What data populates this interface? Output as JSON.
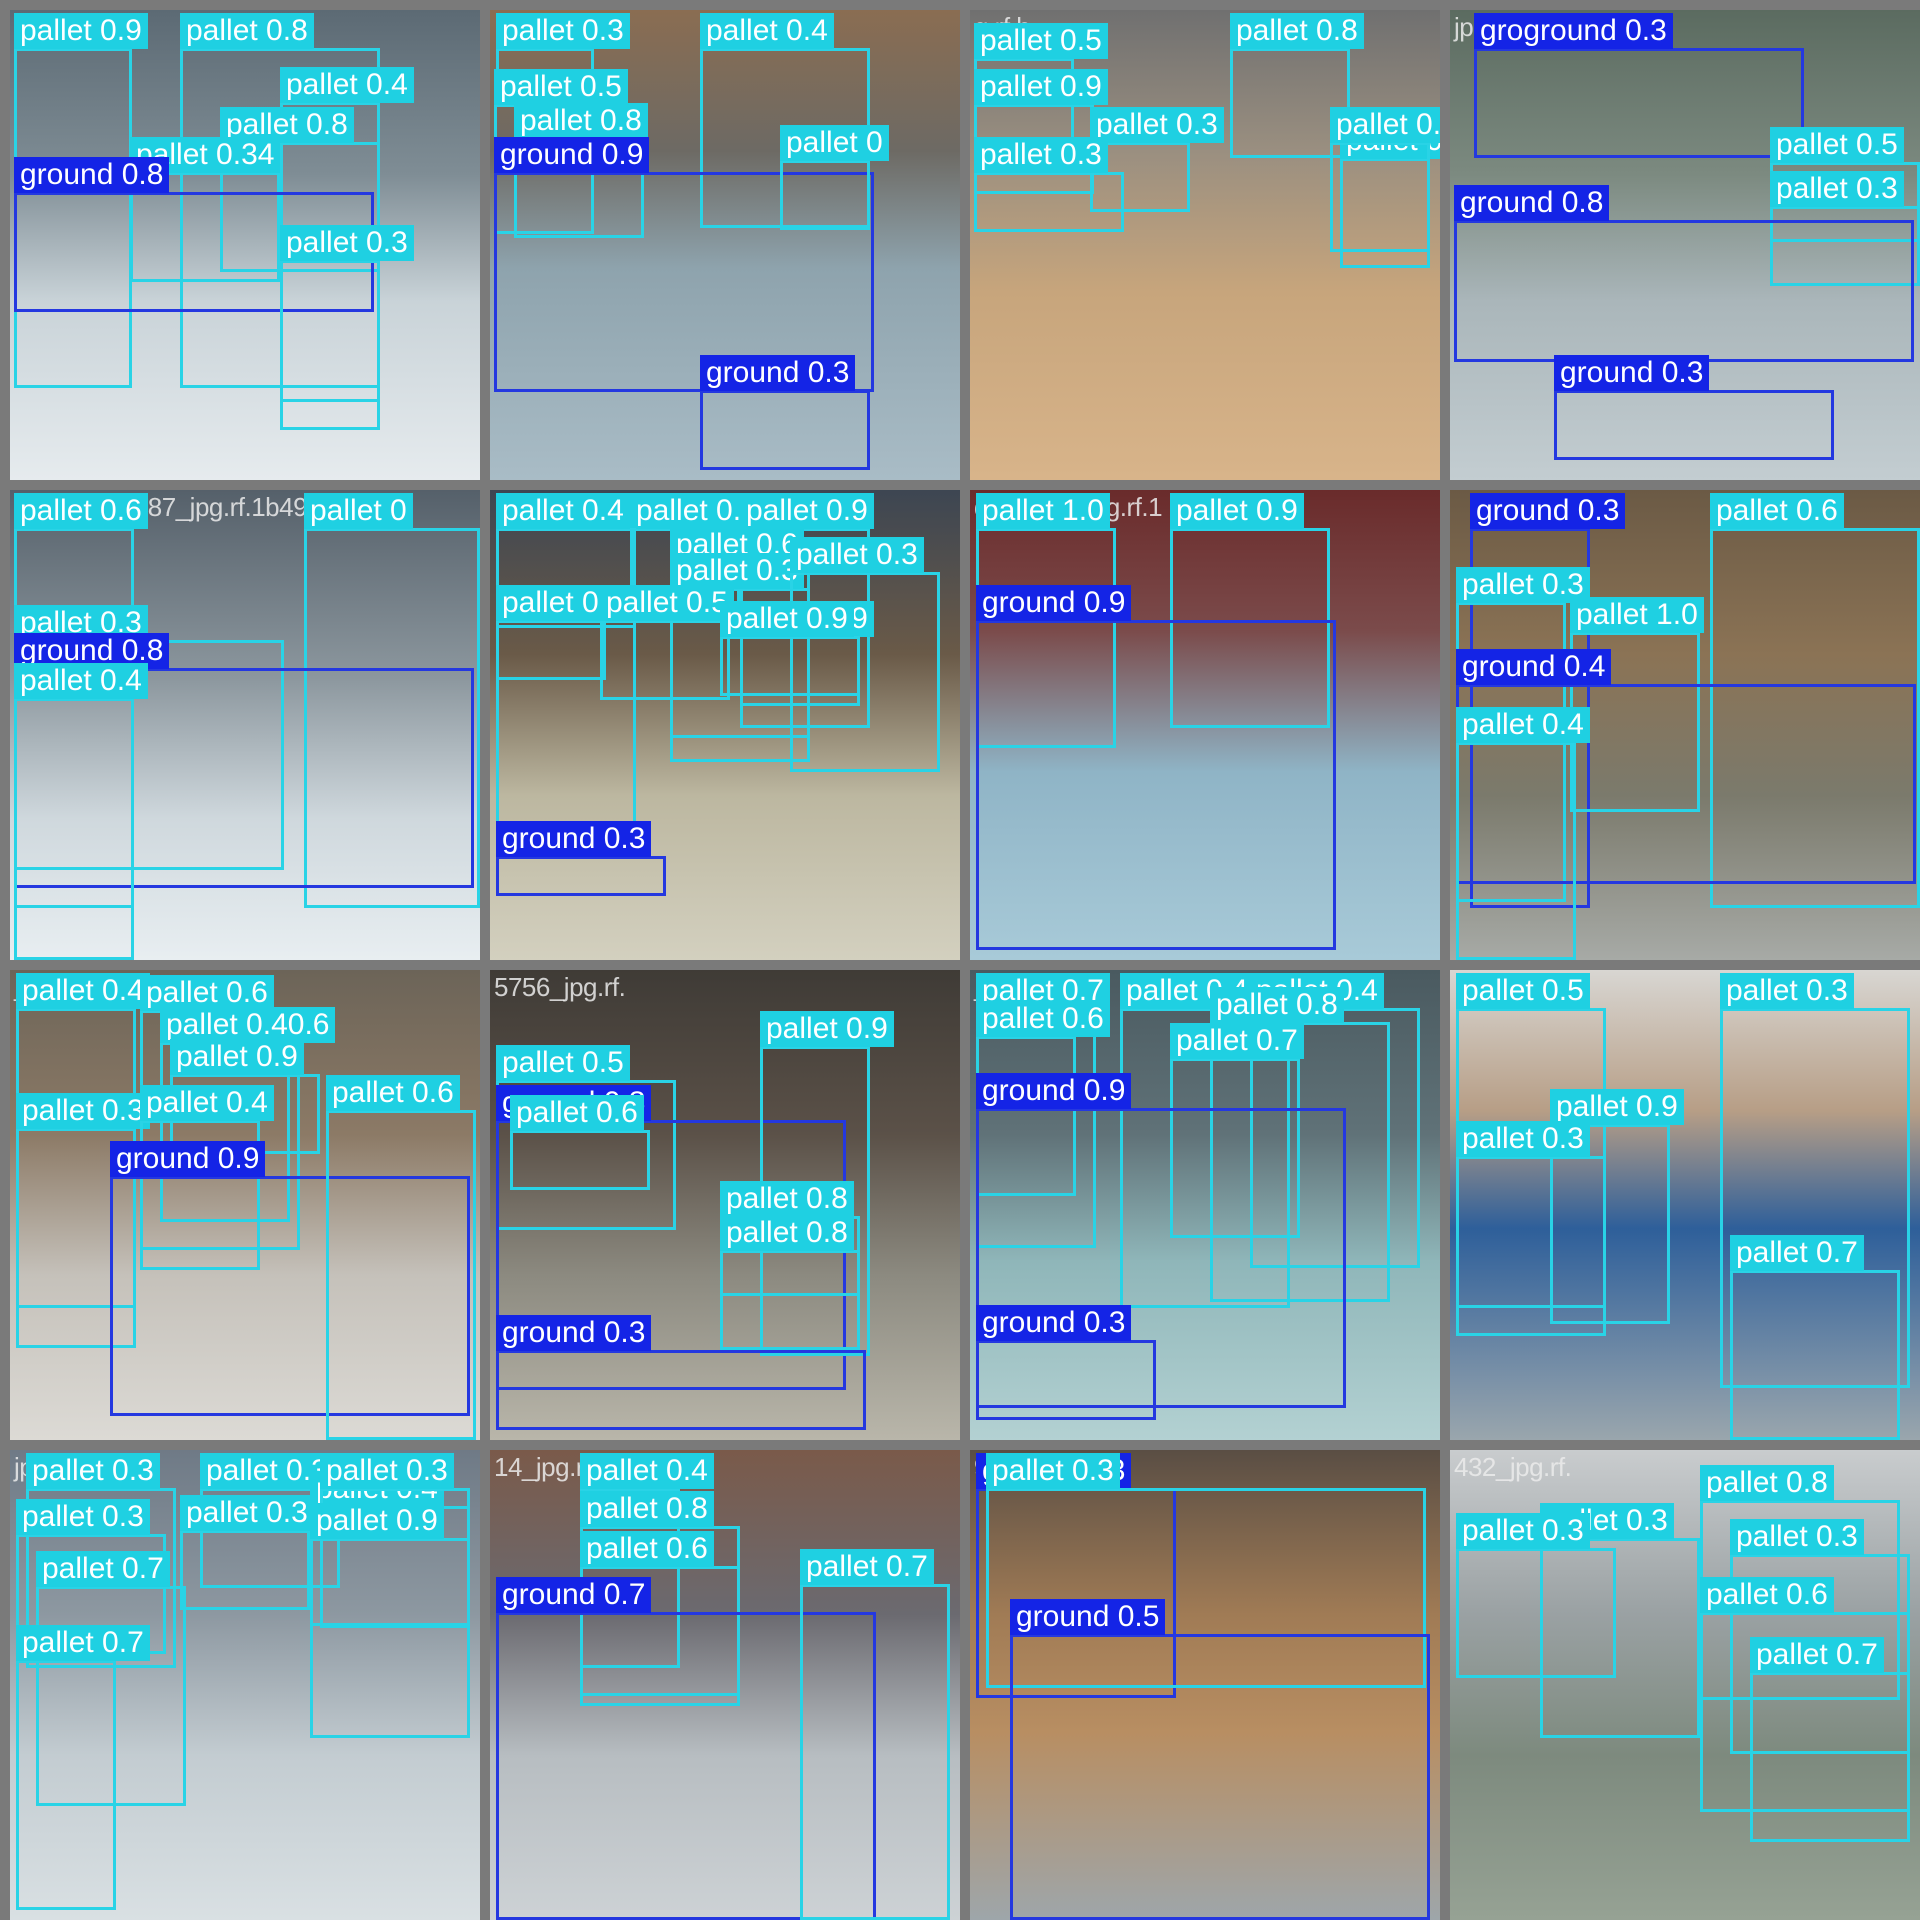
{
  "colors": {
    "pallet": "#29d3e6",
    "ground": "#2438e0",
    "label_text": "#ffffff",
    "mosaic_border": "#7a7a7a"
  },
  "tiles": [
    {
      "filename": "1630...4a",
      "boxes": [
        {
          "label": "pallet 0.9"
        },
        {
          "label": "pallet 0.8"
        },
        {
          "label": "pallet 0.4"
        },
        {
          "label": "pallet 0.8"
        },
        {
          "label": "pallet 0.34"
        },
        {
          "label": "ground 0.8"
        },
        {
          "label": "pallet 0.3"
        }
      ]
    },
    {
      "filename": "",
      "boxes": [
        {
          "label": "pallet 0.3"
        },
        {
          "label": "pallet 0.4"
        },
        {
          "label": "pallet 0.5"
        },
        {
          "label": "pallet 0.8"
        },
        {
          "label": "ground 0.9"
        },
        {
          "label": "pallet 0"
        },
        {
          "label": "ground 0.3"
        }
      ]
    },
    {
      "filename": "g.rf.b",
      "boxes": [
        {
          "label": "pallet 0.5"
        },
        {
          "label": "pallet 0.8"
        },
        {
          "label": "pallet 0.9"
        },
        {
          "label": "pallet 0.3"
        },
        {
          "label": "pallet 0.3"
        },
        {
          "label": "pallet 0.3"
        },
        {
          "label": "pallet 0.7"
        }
      ]
    },
    {
      "filename": "jpg.rf.",
      "boxes": [
        {
          "label": "groground 0.3"
        },
        {
          "label": "pallet 0.5"
        },
        {
          "label": "pallet 0.3"
        },
        {
          "label": "ground 0.8"
        },
        {
          "label": "ground 0.3"
        }
      ]
    },
    {
      "filename": "1063031-9187_jpg.rf.1b49598",
      "boxes": [
        {
          "label": "pallet 0.6"
        },
        {
          "label": "pallet 0"
        },
        {
          "label": "pallet 0.3"
        },
        {
          "label": "ground 0.8"
        },
        {
          "label": "pallet 0.4"
        }
      ]
    },
    {
      "filename": "",
      "boxes": [
        {
          "label": "pallet 0.8"
        },
        {
          "label": "pallet 0.6"
        },
        {
          "label": "pallet 0.4"
        },
        {
          "label": "pallet 0.9"
        },
        {
          "label": "pallet 0.6"
        },
        {
          "label": "pallet 0.3"
        },
        {
          "label": "pallet 0.3"
        },
        {
          "label": "pallet 0"
        },
        {
          "label": "pallet 0.5"
        },
        {
          "label": "pallet 0.9"
        },
        {
          "label": "pallet 0.9"
        },
        {
          "label": "ground 0.3"
        }
      ]
    },
    {
      "filename": "d-8f8703_jpg.rf.1",
      "boxes": [
        {
          "label": "pallet 1.0"
        },
        {
          "label": "pallet 0.9"
        },
        {
          "label": "ground 0.9"
        }
      ]
    },
    {
      "filename": "",
      "boxes": [
        {
          "label": "ground 0.3"
        },
        {
          "label": "pallet 0.6"
        },
        {
          "label": "pallet 0.3"
        },
        {
          "label": "pallet 1.0"
        },
        {
          "label": "ground 0.4"
        },
        {
          "label": "pallet 0.4"
        }
      ]
    },
    {
      "filename": "_jpg.rf.2",
      "boxes": [
        {
          "label": "pallet 0.4"
        },
        {
          "label": "pallet 0.6"
        },
        {
          "label": "pallet 0.40.6"
        },
        {
          "label": "pallet 0.9"
        },
        {
          "label": "pallet 0.3"
        },
        {
          "label": "pallet 0.4"
        },
        {
          "label": "ground 0.9"
        },
        {
          "label": "pallet 0.6"
        }
      ]
    },
    {
      "filename": "5756_jpg.rf.",
      "boxes": [
        {
          "label": "pallet 0.5"
        },
        {
          "label": "ground 0.8"
        },
        {
          "label": "pallet 0.6"
        },
        {
          "label": "pallet 0.9"
        },
        {
          "label": "pallet 0.8"
        },
        {
          "label": "pallet 0.8"
        },
        {
          "label": "ground 0.3"
        }
      ]
    },
    {
      "filename": "_jpg.rf.",
      "boxes": [
        {
          "label": "pallet 0.7"
        },
        {
          "label": "pallet 0.4"
        },
        {
          "label": "pallet 0.4"
        },
        {
          "label": "pallet 0.6"
        },
        {
          "label": "pallet 0.8"
        },
        {
          "label": "pallet 0.7"
        },
        {
          "label": "ground 0.9"
        },
        {
          "label": "ground 0.3"
        }
      ]
    },
    {
      "filename": "193_jpg",
      "boxes": [
        {
          "label": "pallet 0.5"
        },
        {
          "label": "pallet 0.3"
        },
        {
          "label": "pallet 0.9"
        },
        {
          "label": "pallet 0.3"
        },
        {
          "label": "pallet 0.7"
        }
      ]
    },
    {
      "filename": "jpg.rf",
      "boxes": [
        {
          "label": "pallet 0.3"
        },
        {
          "label": "pallet 0.3"
        },
        {
          "label": "pallet 0.3"
        },
        {
          "label": "pallet 0.3"
        },
        {
          "label": "pallet 0.4"
        },
        {
          "label": "pallet 0.3"
        },
        {
          "label": "pallet 0.9"
        },
        {
          "label": "pallet 0.7"
        },
        {
          "label": "pallet 0.7"
        }
      ]
    },
    {
      "filename": "14_jpg.rf.",
      "boxes": [
        {
          "label": "pallet 0.4"
        },
        {
          "label": "pallet 0.8"
        },
        {
          "label": "pallet 0.6"
        },
        {
          "label": "ground 0.7"
        },
        {
          "label": "pallet 0.7"
        }
      ]
    },
    {
      "filename": "9232_jpg.rf.",
      "boxes": [
        {
          "label": "ground 0.3"
        },
        {
          "label": "pallet 0.3"
        },
        {
          "label": "ground 0.5"
        }
      ]
    },
    {
      "filename": "432_jpg.rf.",
      "boxes": [
        {
          "label": "pallet 0.8"
        },
        {
          "label": "pallet 0.3"
        },
        {
          "label": "pallet 0.3"
        },
        {
          "label": "pallet 0.3"
        },
        {
          "label": "pallet 0.6"
        },
        {
          "label": "pallet 0.7"
        }
      ]
    }
  ]
}
